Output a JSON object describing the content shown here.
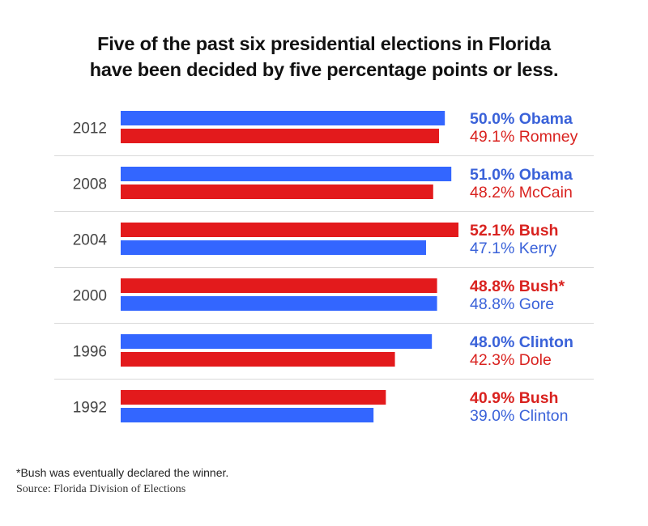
{
  "chart_data": {
    "type": "bar",
    "orientation": "horizontal",
    "title": "Five of the past six presidential elections in Florida have been decided by five percentage points or less.",
    "title_lines": [
      "Five of the past six presidential elections in Florida",
      "have been decided by five percentage points or less."
    ],
    "xlabel": "",
    "ylabel": "",
    "xlim": [
      0,
      52.1
    ],
    "grid": false,
    "unit": "%",
    "colors": {
      "Democrat": "#3366ff",
      "Republican": "#e31a1c",
      "Democrat_text": "#3a62d9",
      "Republican_text": "#d9221f"
    },
    "categories": [
      "2012",
      "2008",
      "2004",
      "2000",
      "1996",
      "1992"
    ],
    "rows": [
      {
        "year": "2012",
        "entries": [
          {
            "party": "Democrat",
            "candidate": "Obama",
            "value": 50.0,
            "label": "50.0% Obama",
            "winner": true
          },
          {
            "party": "Republican",
            "candidate": "Romney",
            "value": 49.1,
            "label": "49.1% Romney",
            "winner": false
          }
        ]
      },
      {
        "year": "2008",
        "entries": [
          {
            "party": "Democrat",
            "candidate": "Obama",
            "value": 51.0,
            "label": "51.0% Obama",
            "winner": true
          },
          {
            "party": "Republican",
            "candidate": "McCain",
            "value": 48.2,
            "label": "48.2% McCain",
            "winner": false
          }
        ]
      },
      {
        "year": "2004",
        "entries": [
          {
            "party": "Republican",
            "candidate": "Bush",
            "value": 52.1,
            "label": "52.1% Bush",
            "winner": true
          },
          {
            "party": "Democrat",
            "candidate": "Kerry",
            "value": 47.1,
            "label": "47.1% Kerry",
            "winner": false
          }
        ]
      },
      {
        "year": "2000",
        "entries": [
          {
            "party": "Republican",
            "candidate": "Bush",
            "value": 48.8,
            "label": "48.8% Bush*",
            "winner": true
          },
          {
            "party": "Democrat",
            "candidate": "Gore",
            "value": 48.8,
            "label": "48.8% Gore",
            "winner": false
          }
        ]
      },
      {
        "year": "1996",
        "entries": [
          {
            "party": "Democrat",
            "candidate": "Clinton",
            "value": 48.0,
            "label": "48.0% Clinton",
            "winner": true
          },
          {
            "party": "Republican",
            "candidate": "Dole",
            "value": 42.3,
            "label": "42.3% Dole",
            "winner": false
          }
        ]
      },
      {
        "year": "1992",
        "entries": [
          {
            "party": "Republican",
            "candidate": "Bush",
            "value": 40.9,
            "label": "40.9% Bush",
            "winner": true
          },
          {
            "party": "Democrat",
            "candidate": "Clinton",
            "value": 39.0,
            "label": "39.0% Clinton",
            "winner": false
          }
        ]
      }
    ]
  },
  "footnote": "*Bush was eventually declared the winner.",
  "source": "Source: Florida Division of Elections"
}
